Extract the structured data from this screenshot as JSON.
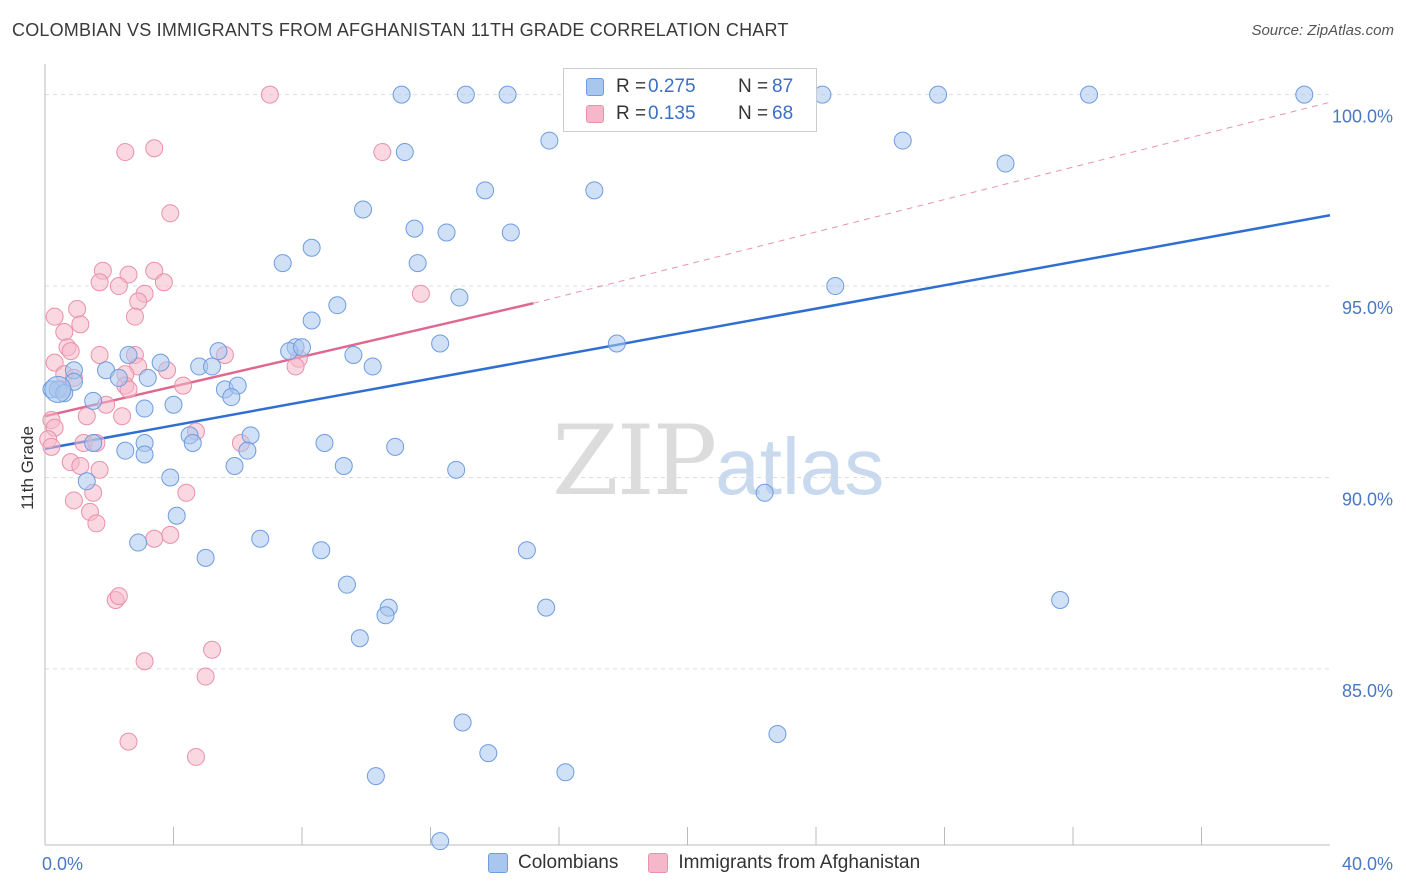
{
  "header": {
    "title": "COLOMBIAN VS IMMIGRANTS FROM AFGHANISTAN 11TH GRADE CORRELATION CHART",
    "source": "Source: ZipAtlas.com"
  },
  "watermark": {
    "zip": "ZIP",
    "atlas": "atlas"
  },
  "legend": {
    "rows": [
      {
        "r_label": "R =",
        "r_value": "0.275",
        "n_label": "N =",
        "n_value": "87",
        "color": "#a9c6ee"
      },
      {
        "r_label": "R =",
        "r_value": "0.135",
        "n_label": "N =",
        "n_value": "68",
        "color": "#f5b8cb"
      }
    ]
  },
  "bottom_legend": [
    {
      "label": "Colombians",
      "color": "#a9c6ee"
    },
    {
      "label": "Immigrants from Afghanistan",
      "color": "#f5b8cb"
    }
  ],
  "chart_data": {
    "type": "scatter",
    "title": "COLOMBIAN VS IMMIGRANTS FROM AFGHANISTAN 11TH GRADE CORRELATION CHART",
    "xlabel": "",
    "ylabel": "11th Grade",
    "xlim": [
      0,
      40
    ],
    "ylim": [
      80.4,
      100.8
    ],
    "x_tick_labels": [
      "0.0%",
      "40.0%"
    ],
    "y_ticks": [
      {
        "value": 85,
        "label": "85.0%"
      },
      {
        "value": 90,
        "label": "90.0%"
      },
      {
        "value": 95,
        "label": "95.0%"
      },
      {
        "value": 100,
        "label": "100.0%"
      }
    ],
    "grid": true,
    "series": [
      {
        "name": "Colombians",
        "color": "#6d9de0",
        "fill": "#a9c6ee",
        "trend": {
          "x0": 0,
          "y0": 90.75,
          "x1": 40,
          "y1": 96.85,
          "color": "#2f6fd1",
          "dashed_to": null
        },
        "points": [
          [
            11.1,
            100
          ],
          [
            13.1,
            100
          ],
          [
            14.4,
            100
          ],
          [
            24.2,
            100
          ],
          [
            27.8,
            100
          ],
          [
            32.5,
            100
          ],
          [
            39.2,
            100
          ],
          [
            15.7,
            98.8
          ],
          [
            11.2,
            98.5
          ],
          [
            26.7,
            98.8
          ],
          [
            29.9,
            98.2
          ],
          [
            13.7,
            97.5
          ],
          [
            17.1,
            97.5
          ],
          [
            9.9,
            97.0
          ],
          [
            11.5,
            96.5
          ],
          [
            12.5,
            96.4
          ],
          [
            14.5,
            96.4
          ],
          [
            8.3,
            96.0
          ],
          [
            11.6,
            95.6
          ],
          [
            7.4,
            95.6
          ],
          [
            24.6,
            95.0
          ],
          [
            12.9,
            94.7
          ],
          [
            9.1,
            94.5
          ],
          [
            8.3,
            94.1
          ],
          [
            17.8,
            93.5
          ],
          [
            12.3,
            93.5
          ],
          [
            7.8,
            93.4
          ],
          [
            7.6,
            93.3
          ],
          [
            8.0,
            93.4
          ],
          [
            2.6,
            93.2
          ],
          [
            5.4,
            93.3
          ],
          [
            3.6,
            93.0
          ],
          [
            9.6,
            93.2
          ],
          [
            4.8,
            92.9
          ],
          [
            5.2,
            92.9
          ],
          [
            10.2,
            92.9
          ],
          [
            1.9,
            92.8
          ],
          [
            0.9,
            92.8
          ],
          [
            2.3,
            92.6
          ],
          [
            3.2,
            92.6
          ],
          [
            0.9,
            92.5
          ],
          [
            0.2,
            92.3
          ],
          [
            0.4,
            92.3
          ],
          [
            0.6,
            92.2
          ],
          [
            5.6,
            92.3
          ],
          [
            6.0,
            92.4
          ],
          [
            1.5,
            92.0
          ],
          [
            5.8,
            92.1
          ],
          [
            3.1,
            91.8
          ],
          [
            4.0,
            91.9
          ],
          [
            6.4,
            91.1
          ],
          [
            4.5,
            91.1
          ],
          [
            4.6,
            90.9
          ],
          [
            8.7,
            90.9
          ],
          [
            10.9,
            90.8
          ],
          [
            1.5,
            90.9
          ],
          [
            3.1,
            90.9
          ],
          [
            2.5,
            90.7
          ],
          [
            6.3,
            90.7
          ],
          [
            3.1,
            90.6
          ],
          [
            5.9,
            90.3
          ],
          [
            9.3,
            90.3
          ],
          [
            12.8,
            90.2
          ],
          [
            3.9,
            90.0
          ],
          [
            1.3,
            89.9
          ],
          [
            22.4,
            89.6
          ],
          [
            4.1,
            89.0
          ],
          [
            2.9,
            88.3
          ],
          [
            6.7,
            88.4
          ],
          [
            8.6,
            88.1
          ],
          [
            15.0,
            88.1
          ],
          [
            5.0,
            87.9
          ],
          [
            9.4,
            87.2
          ],
          [
            10.7,
            86.6
          ],
          [
            10.6,
            86.4
          ],
          [
            15.6,
            86.6
          ],
          [
            31.6,
            86.8
          ],
          [
            9.8,
            85.8
          ],
          [
            13.0,
            83.6
          ],
          [
            22.8,
            83.3
          ],
          [
            13.8,
            82.8
          ],
          [
            10.3,
            82.2
          ],
          [
            16.2,
            82.3
          ],
          [
            12.3,
            80.5
          ]
        ]
      },
      {
        "name": "Immigrants from Afghanistan",
        "color": "#ea90ab",
        "fill": "#f5b8cb",
        "trend": {
          "x0": 0,
          "y0": 91.6,
          "x1": 15.2,
          "y1": 94.55,
          "color": "#e0688f",
          "dashed_to": {
            "x": 40,
            "y": 99.8
          }
        },
        "points": [
          [
            7.0,
            100
          ],
          [
            2.5,
            98.5
          ],
          [
            3.4,
            98.6
          ],
          [
            10.5,
            98.5
          ],
          [
            3.9,
            96.9
          ],
          [
            1.8,
            95.4
          ],
          [
            3.4,
            95.4
          ],
          [
            2.6,
            95.3
          ],
          [
            1.7,
            95.1
          ],
          [
            2.3,
            95.0
          ],
          [
            3.7,
            95.1
          ],
          [
            3.1,
            94.8
          ],
          [
            11.7,
            94.8
          ],
          [
            2.9,
            94.6
          ],
          [
            0.3,
            94.2
          ],
          [
            1.0,
            94.4
          ],
          [
            2.8,
            94.2
          ],
          [
            1.1,
            94.0
          ],
          [
            0.6,
            93.8
          ],
          [
            0.7,
            93.4
          ],
          [
            0.8,
            93.3
          ],
          [
            1.7,
            93.2
          ],
          [
            2.8,
            93.2
          ],
          [
            5.6,
            93.2
          ],
          [
            7.9,
            93.1
          ],
          [
            0.3,
            93.0
          ],
          [
            2.9,
            92.9
          ],
          [
            2.5,
            92.7
          ],
          [
            7.8,
            92.9
          ],
          [
            3.8,
            92.8
          ],
          [
            0.6,
            92.7
          ],
          [
            0.9,
            92.6
          ],
          [
            4.3,
            92.4
          ],
          [
            2.5,
            92.4
          ],
          [
            2.6,
            92.3
          ],
          [
            0.5,
            92.3
          ],
          [
            1.9,
            91.9
          ],
          [
            0.2,
            91.5
          ],
          [
            0.3,
            91.3
          ],
          [
            1.3,
            91.6
          ],
          [
            2.4,
            91.6
          ],
          [
            0.1,
            91.0
          ],
          [
            4.7,
            91.2
          ],
          [
            1.2,
            90.9
          ],
          [
            1.6,
            90.9
          ],
          [
            6.1,
            90.9
          ],
          [
            0.2,
            90.8
          ],
          [
            0.8,
            90.4
          ],
          [
            1.1,
            90.3
          ],
          [
            1.7,
            90.2
          ],
          [
            1.5,
            89.6
          ],
          [
            4.4,
            89.6
          ],
          [
            0.9,
            89.4
          ],
          [
            1.4,
            89.1
          ],
          [
            1.6,
            88.8
          ],
          [
            3.9,
            88.5
          ],
          [
            3.4,
            88.4
          ],
          [
            2.2,
            86.8
          ],
          [
            2.3,
            86.9
          ],
          [
            5.2,
            85.5
          ],
          [
            3.1,
            85.2
          ],
          [
            5.0,
            84.8
          ],
          [
            2.6,
            83.1
          ],
          [
            4.7,
            82.7
          ]
        ]
      }
    ]
  }
}
